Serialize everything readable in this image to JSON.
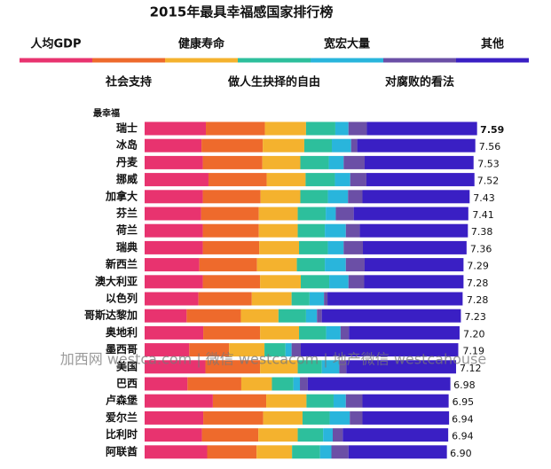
{
  "chart_data": {
    "type": "bar",
    "orientation": "horizontal",
    "stacked": true,
    "title": "2015年最具幸福感国家排行榜",
    "category_header": "最幸福",
    "categories": [
      "瑞士",
      "冰岛",
      "丹麦",
      "挪威",
      "加拿大",
      "芬兰",
      "荷兰",
      "瑞典",
      "新西兰",
      "澳大利亚",
      "以色列",
      "哥斯达黎加",
      "奥地利",
      "墨西哥",
      "美国",
      "巴西",
      "卢森堡",
      "爱尔兰",
      "比利时",
      "阿联酋"
    ],
    "series": [
      {
        "name": "人均GDP",
        "color": "#e8336f",
        "values": [
          1.4,
          1.3,
          1.33,
          1.46,
          1.33,
          1.29,
          1.33,
          1.33,
          1.25,
          1.33,
          1.23,
          0.96,
          1.34,
          1.02,
          1.39,
          0.98,
          1.56,
          1.34,
          1.31,
          1.43
        ]
      },
      {
        "name": "社会支持",
        "color": "#ee6a2c",
        "values": [
          1.35,
          1.4,
          1.36,
          1.33,
          1.32,
          1.32,
          1.28,
          1.29,
          1.32,
          1.31,
          1.22,
          1.24,
          1.3,
          0.91,
          1.25,
          1.23,
          1.22,
          1.37,
          1.29,
          1.13
        ]
      },
      {
        "name": "健康寿命",
        "color": "#f4b22e",
        "values": [
          0.94,
          0.95,
          0.87,
          0.89,
          0.91,
          0.89,
          0.89,
          0.91,
          0.91,
          0.93,
          0.91,
          0.86,
          0.89,
          0.81,
          0.86,
          0.7,
          0.92,
          0.9,
          0.9,
          0.81
        ]
      },
      {
        "name": "做人生抉择的自由",
        "color": "#2dbf9c",
        "values": [
          0.67,
          0.63,
          0.65,
          0.67,
          0.63,
          0.64,
          0.62,
          0.66,
          0.64,
          0.65,
          0.41,
          0.63,
          0.62,
          0.48,
          0.55,
          0.49,
          0.62,
          0.62,
          0.58,
          0.64
        ]
      },
      {
        "name": "宽宏大量",
        "color": "#29b5dc",
        "values": [
          0.3,
          0.44,
          0.34,
          0.35,
          0.46,
          0.23,
          0.48,
          0.36,
          0.48,
          0.44,
          0.33,
          0.25,
          0.33,
          0.14,
          0.4,
          0.15,
          0.28,
          0.46,
          0.22,
          0.26
        ]
      },
      {
        "name": "对腐败的看法",
        "color": "#6b4fa6",
        "values": [
          0.42,
          0.14,
          0.48,
          0.37,
          0.33,
          0.41,
          0.32,
          0.44,
          0.43,
          0.36,
          0.08,
          0.11,
          0.19,
          0.21,
          0.16,
          0.18,
          0.38,
          0.29,
          0.23,
          0.39
        ]
      },
      {
        "name": "其他",
        "color": "#3a1fc4",
        "values": [
          2.52,
          2.7,
          2.49,
          2.47,
          2.45,
          2.62,
          2.47,
          2.37,
          2.26,
          2.27,
          3.09,
          3.18,
          2.53,
          3.6,
          2.51,
          3.26,
          1.97,
          1.98,
          2.41,
          2.25
        ]
      }
    ],
    "totals": [
      7.59,
      7.56,
      7.53,
      7.52,
      7.43,
      7.41,
      7.38,
      7.36,
      7.29,
      7.28,
      7.28,
      7.23,
      7.2,
      7.19,
      7.12,
      6.98,
      6.95,
      6.94,
      6.94,
      6.9
    ],
    "total_labels": [
      "7.59",
      "7.56",
      "7.53",
      "7.52",
      "7.43",
      "7.41",
      "7.38",
      "7.36",
      "7.29",
      "7.28",
      "7.28",
      "7.23",
      "7.20",
      "7.19",
      "7.12",
      "6.98",
      "6.95",
      "6.94",
      "6.94",
      "6.90"
    ],
    "watermark": "加西网 westca.com | 微信 westcacom | 地产微信 westcahouse"
  }
}
